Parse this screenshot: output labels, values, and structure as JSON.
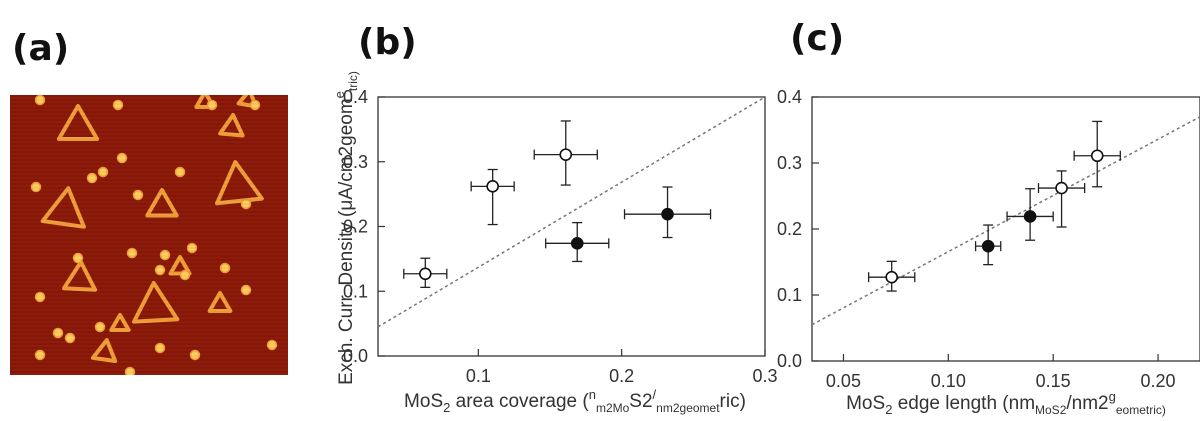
{
  "panels": {
    "a": "(a)",
    "b": "(b)",
    "c": "(c)"
  },
  "afm_image": {
    "colors": {
      "background": "#8a1808",
      "feature": "#f1a13a",
      "feature_core": "#ffd060"
    }
  },
  "chart_data": [
    {
      "type": "scatter",
      "panel": "(b)",
      "xlabel": "MoS2 area coverage (nm2MoS2/nm2geometric)",
      "ylabel": "Exch. Curr. Density (μA/cm2geometric)",
      "xlim": [
        0.03,
        0.3
      ],
      "ylim": [
        0.0,
        0.4
      ],
      "x_ticks": [
        "0.1",
        "0.2",
        "0.3"
      ],
      "y_ticks": [
        "0.0",
        "0.1",
        "0.2",
        "0.3",
        "0.4"
      ],
      "series": [
        {
          "marker": "open-circle",
          "points": [
            {
              "x": 0.063,
              "y": 0.127,
              "xerr": 0.015,
              "yerr_up": 0.024,
              "yerr_down": 0.021
            },
            {
              "x": 0.11,
              "y": 0.262,
              "xerr": 0.015,
              "yerr_up": 0.026,
              "yerr_down": 0.059
            },
            {
              "x": 0.161,
              "y": 0.311,
              "xerr": 0.022,
              "yerr_up": 0.052,
              "yerr_down": 0.047
            }
          ]
        },
        {
          "marker": "filled-circle",
          "points": [
            {
              "x": 0.169,
              "y": 0.174,
              "xerr": 0.022,
              "yerr_up": 0.032,
              "yerr_down": 0.028
            },
            {
              "x": 0.232,
              "y": 0.219,
              "xerr": 0.03,
              "yerr_up": 0.042,
              "yerr_down": 0.036
            }
          ]
        }
      ],
      "trend_line": {
        "style": "dotted",
        "points": [
          [
            0.03,
            0.045
          ],
          [
            0.3,
            0.4
          ]
        ]
      }
    },
    {
      "type": "scatter",
      "panel": "(c)",
      "xlabel": "MoS2 edge length (nmMoS2/nm2geometric)",
      "ylabel": "",
      "xlim": [
        0.035,
        0.22
      ],
      "ylim": [
        0.0,
        0.4
      ],
      "x_ticks": [
        "0.05",
        "0.10",
        "0.15",
        "0.20"
      ],
      "y_ticks": [
        "0.0",
        "0.1",
        "0.2",
        "0.3",
        "0.4"
      ],
      "series": [
        {
          "marker": "open-circle",
          "points": [
            {
              "x": 0.073,
              "y": 0.127,
              "xerr": 0.011,
              "yerr_up": 0.024,
              "yerr_down": 0.021
            },
            {
              "x": 0.154,
              "y": 0.262,
              "xerr": 0.011,
              "yerr_up": 0.026,
              "yerr_down": 0.059
            },
            {
              "x": 0.171,
              "y": 0.311,
              "xerr": 0.011,
              "yerr_up": 0.052,
              "yerr_down": 0.047
            }
          ]
        },
        {
          "marker": "filled-circle",
          "points": [
            {
              "x": 0.119,
              "y": 0.174,
              "xerr": 0.006,
              "yerr_up": 0.032,
              "yerr_down": 0.028
            },
            {
              "x": 0.139,
              "y": 0.219,
              "xerr": 0.011,
              "yerr_up": 0.042,
              "yerr_down": 0.036
            }
          ]
        }
      ],
      "trend_line": {
        "style": "dotted",
        "points": [
          [
            0.035,
            0.055
          ],
          [
            0.22,
            0.37
          ]
        ]
      }
    }
  ]
}
